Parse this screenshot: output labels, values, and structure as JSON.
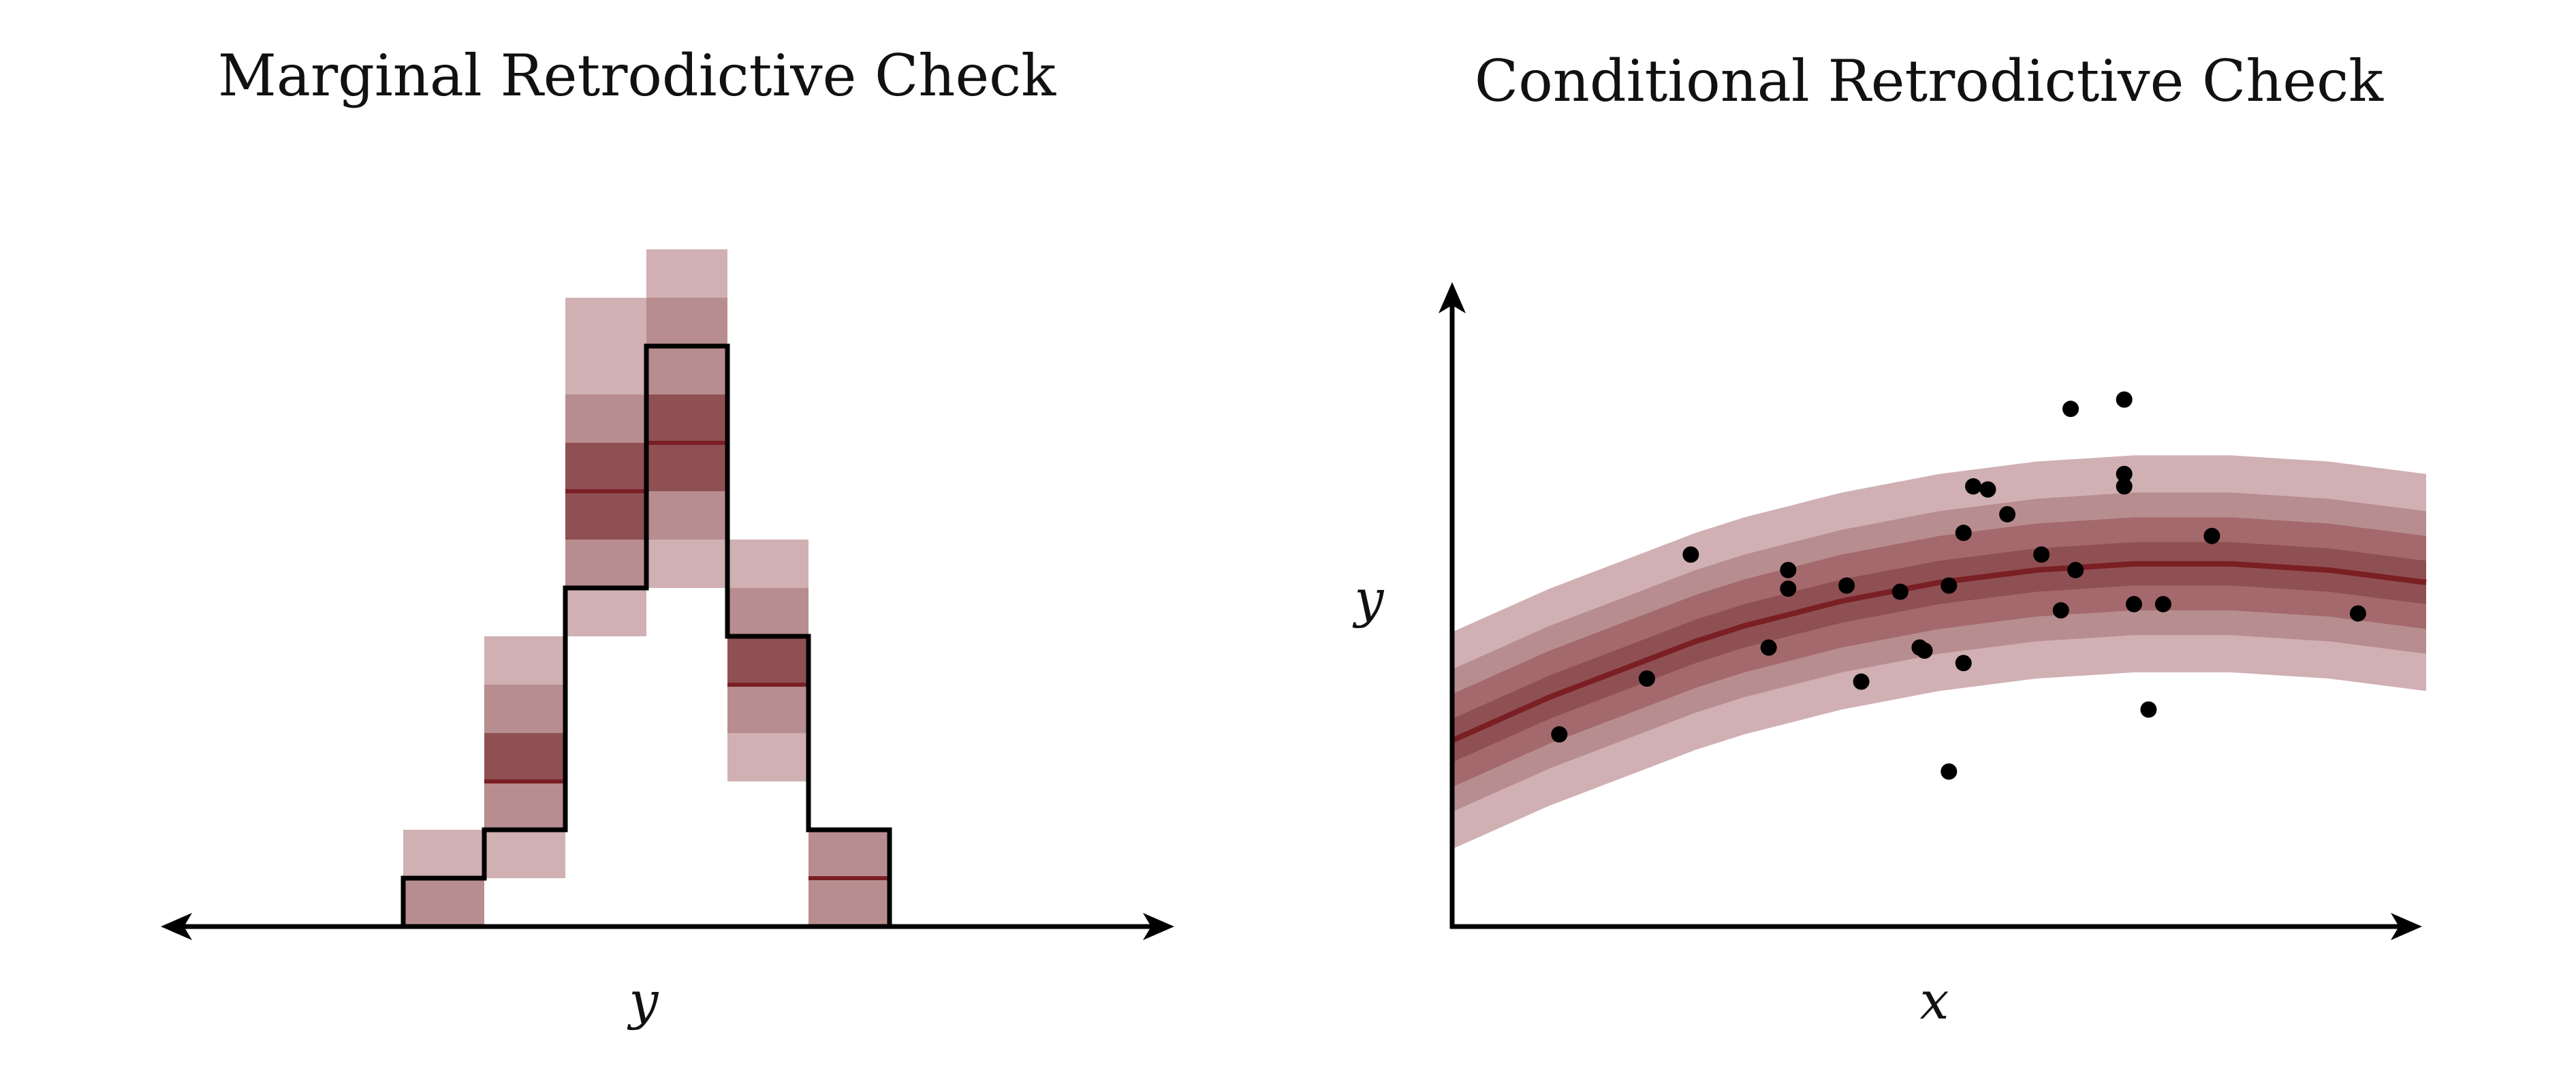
{
  "colors": {
    "light": "#d0b0b3",
    "mid_light": "#b88d8f",
    "mid": "#a4696c",
    "dark": "#8f5053",
    "median": "#7a1f24",
    "observed": "#000000"
  },
  "chart_data": [
    {
      "type": "bar",
      "title": "Marginal Retrodictive Check",
      "xlabel": "y",
      "ylabel": "",
      "grid": false,
      "ylim": [
        0,
        14
      ],
      "bins": [
        {
          "observed": 1,
          "q10": 0,
          "q20": 0,
          "q30": 1,
          "q50": 1,
          "q70": 1,
          "q80": 1,
          "q90": 2
        },
        {
          "observed": 2,
          "q10": 1,
          "q20": 2,
          "q30": 3,
          "q50": 3,
          "q70": 4,
          "q80": 5,
          "q90": 6
        },
        {
          "observed": 7,
          "q10": 6,
          "q20": 7,
          "q30": 8,
          "q50": 9,
          "q70": 10,
          "q80": 11,
          "q90": 13
        },
        {
          "observed": 12,
          "q10": 7,
          "q20": 8,
          "q30": 9,
          "q50": 10,
          "q70": 11,
          "q80": 13,
          "q90": 14
        },
        {
          "observed": 6,
          "q10": 3,
          "q20": 4,
          "q30": 5,
          "q50": 5,
          "q70": 6,
          "q80": 7,
          "q90": 8
        },
        {
          "observed": 2,
          "q10": 0,
          "q20": 0,
          "q30": 1,
          "q50": 1,
          "q70": 1,
          "q80": 2,
          "q90": 2
        }
      ]
    },
    {
      "type": "scatter",
      "title": "Conditional Retrodictive Check",
      "xlabel": "x",
      "ylabel": "y",
      "grid": false,
      "xlim": [
        0,
        10
      ],
      "ylim": [
        0,
        10
      ],
      "band": {
        "x": [
          0,
          0.5,
          1,
          1.5,
          2,
          2.5,
          3,
          3.5,
          4,
          4.5,
          5,
          5.5,
          6,
          6.5,
          7,
          7.5,
          8,
          8.5,
          9,
          9.5,
          10
        ],
        "median": [
          3.0,
          3.35,
          3.7,
          4.0,
          4.3,
          4.6,
          4.85,
          5.05,
          5.25,
          5.4,
          5.55,
          5.65,
          5.75,
          5.8,
          5.85,
          5.85,
          5.85,
          5.8,
          5.75,
          5.65,
          5.55
        ],
        "half_widths": {
          "inner": 0.35,
          "q20_80": 0.75,
          "q10_90": 1.15,
          "outer": 1.75
        }
      },
      "points": [
        {
          "x": 1.1,
          "y": 3.1
        },
        {
          "x": 2.0,
          "y": 4.0
        },
        {
          "x": 2.45,
          "y": 6.0
        },
        {
          "x": 3.25,
          "y": 4.5
        },
        {
          "x": 3.45,
          "y": 5.75
        },
        {
          "x": 3.45,
          "y": 5.45
        },
        {
          "x": 4.05,
          "y": 5.5
        },
        {
          "x": 4.2,
          "y": 3.95
        },
        {
          "x": 4.6,
          "y": 5.4
        },
        {
          "x": 4.8,
          "y": 4.5
        },
        {
          "x": 4.85,
          "y": 4.45
        },
        {
          "x": 5.1,
          "y": 2.5
        },
        {
          "x": 5.1,
          "y": 5.5
        },
        {
          "x": 5.25,
          "y": 6.35
        },
        {
          "x": 5.25,
          "y": 4.25
        },
        {
          "x": 5.35,
          "y": 7.1
        },
        {
          "x": 5.5,
          "y": 7.05
        },
        {
          "x": 5.7,
          "y": 6.65
        },
        {
          "x": 6.05,
          "y": 6.0
        },
        {
          "x": 6.25,
          "y": 5.1
        },
        {
          "x": 6.4,
          "y": 5.75
        },
        {
          "x": 6.35,
          "y": 8.35
        },
        {
          "x": 6.9,
          "y": 8.5
        },
        {
          "x": 6.9,
          "y": 7.3
        },
        {
          "x": 6.9,
          "y": 7.1
        },
        {
          "x": 7.0,
          "y": 5.2
        },
        {
          "x": 7.15,
          "y": 3.5
        },
        {
          "x": 7.3,
          "y": 5.2
        },
        {
          "x": 7.8,
          "y": 6.3
        },
        {
          "x": 9.3,
          "y": 5.05
        }
      ]
    }
  ]
}
